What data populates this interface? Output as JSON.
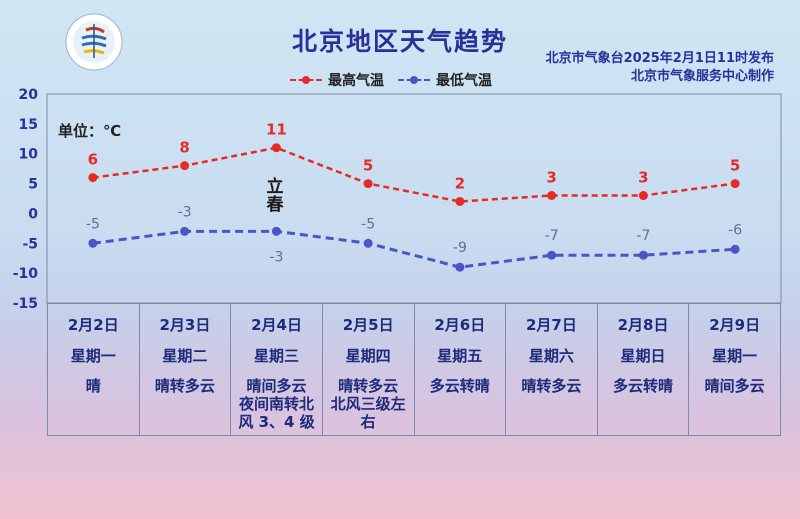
{
  "title": "北京地区天气趋势",
  "source": [
    "北京市气象台2025年2月1日11时发布",
    "北京市气象服务中心制作"
  ],
  "legend": {
    "high": "最高气温",
    "low": "最低气温"
  },
  "unit": "单位：℃",
  "solar_term": [
    "立",
    "春"
  ],
  "colors": {
    "high": "#e52b25",
    "low": "#4a55c8",
    "title": "#2a2f9a"
  },
  "chart_data": {
    "type": "line",
    "ylim": [
      -15,
      20
    ],
    "yticks": [
      20,
      15,
      10,
      5,
      0,
      -5,
      -10,
      -15
    ],
    "categories": [
      "2月2日",
      "2月3日",
      "2月4日",
      "2月5日",
      "2月6日",
      "2月7日",
      "2月8日",
      "2月9日"
    ],
    "series": [
      {
        "name": "最高气温",
        "values": [
          6,
          8,
          11,
          5,
          2,
          3,
          3,
          5
        ]
      },
      {
        "name": "最低气温",
        "values": [
          -5,
          -3,
          -3,
          -5,
          -9,
          -7,
          -7,
          -6
        ]
      }
    ],
    "grid": false
  },
  "days": [
    {
      "date": "2月2日",
      "week": "星期一",
      "cond": [
        "晴"
      ]
    },
    {
      "date": "2月3日",
      "week": "星期二",
      "cond": [
        "晴转多云"
      ]
    },
    {
      "date": "2月4日",
      "week": "星期三",
      "cond": [
        "晴间多云",
        "夜间南转北",
        "风 3、4 级"
      ]
    },
    {
      "date": "2月5日",
      "week": "星期四",
      "cond": [
        "晴转多云",
        "北风三级左",
        "右"
      ]
    },
    {
      "date": "2月6日",
      "week": "星期五",
      "cond": [
        "多云转晴"
      ]
    },
    {
      "date": "2月7日",
      "week": "星期六",
      "cond": [
        "晴转多云"
      ]
    },
    {
      "date": "2月8日",
      "week": "星期日",
      "cond": [
        "多云转晴"
      ]
    },
    {
      "date": "2月9日",
      "week": "星期一",
      "cond": [
        "晴间多云"
      ]
    }
  ]
}
